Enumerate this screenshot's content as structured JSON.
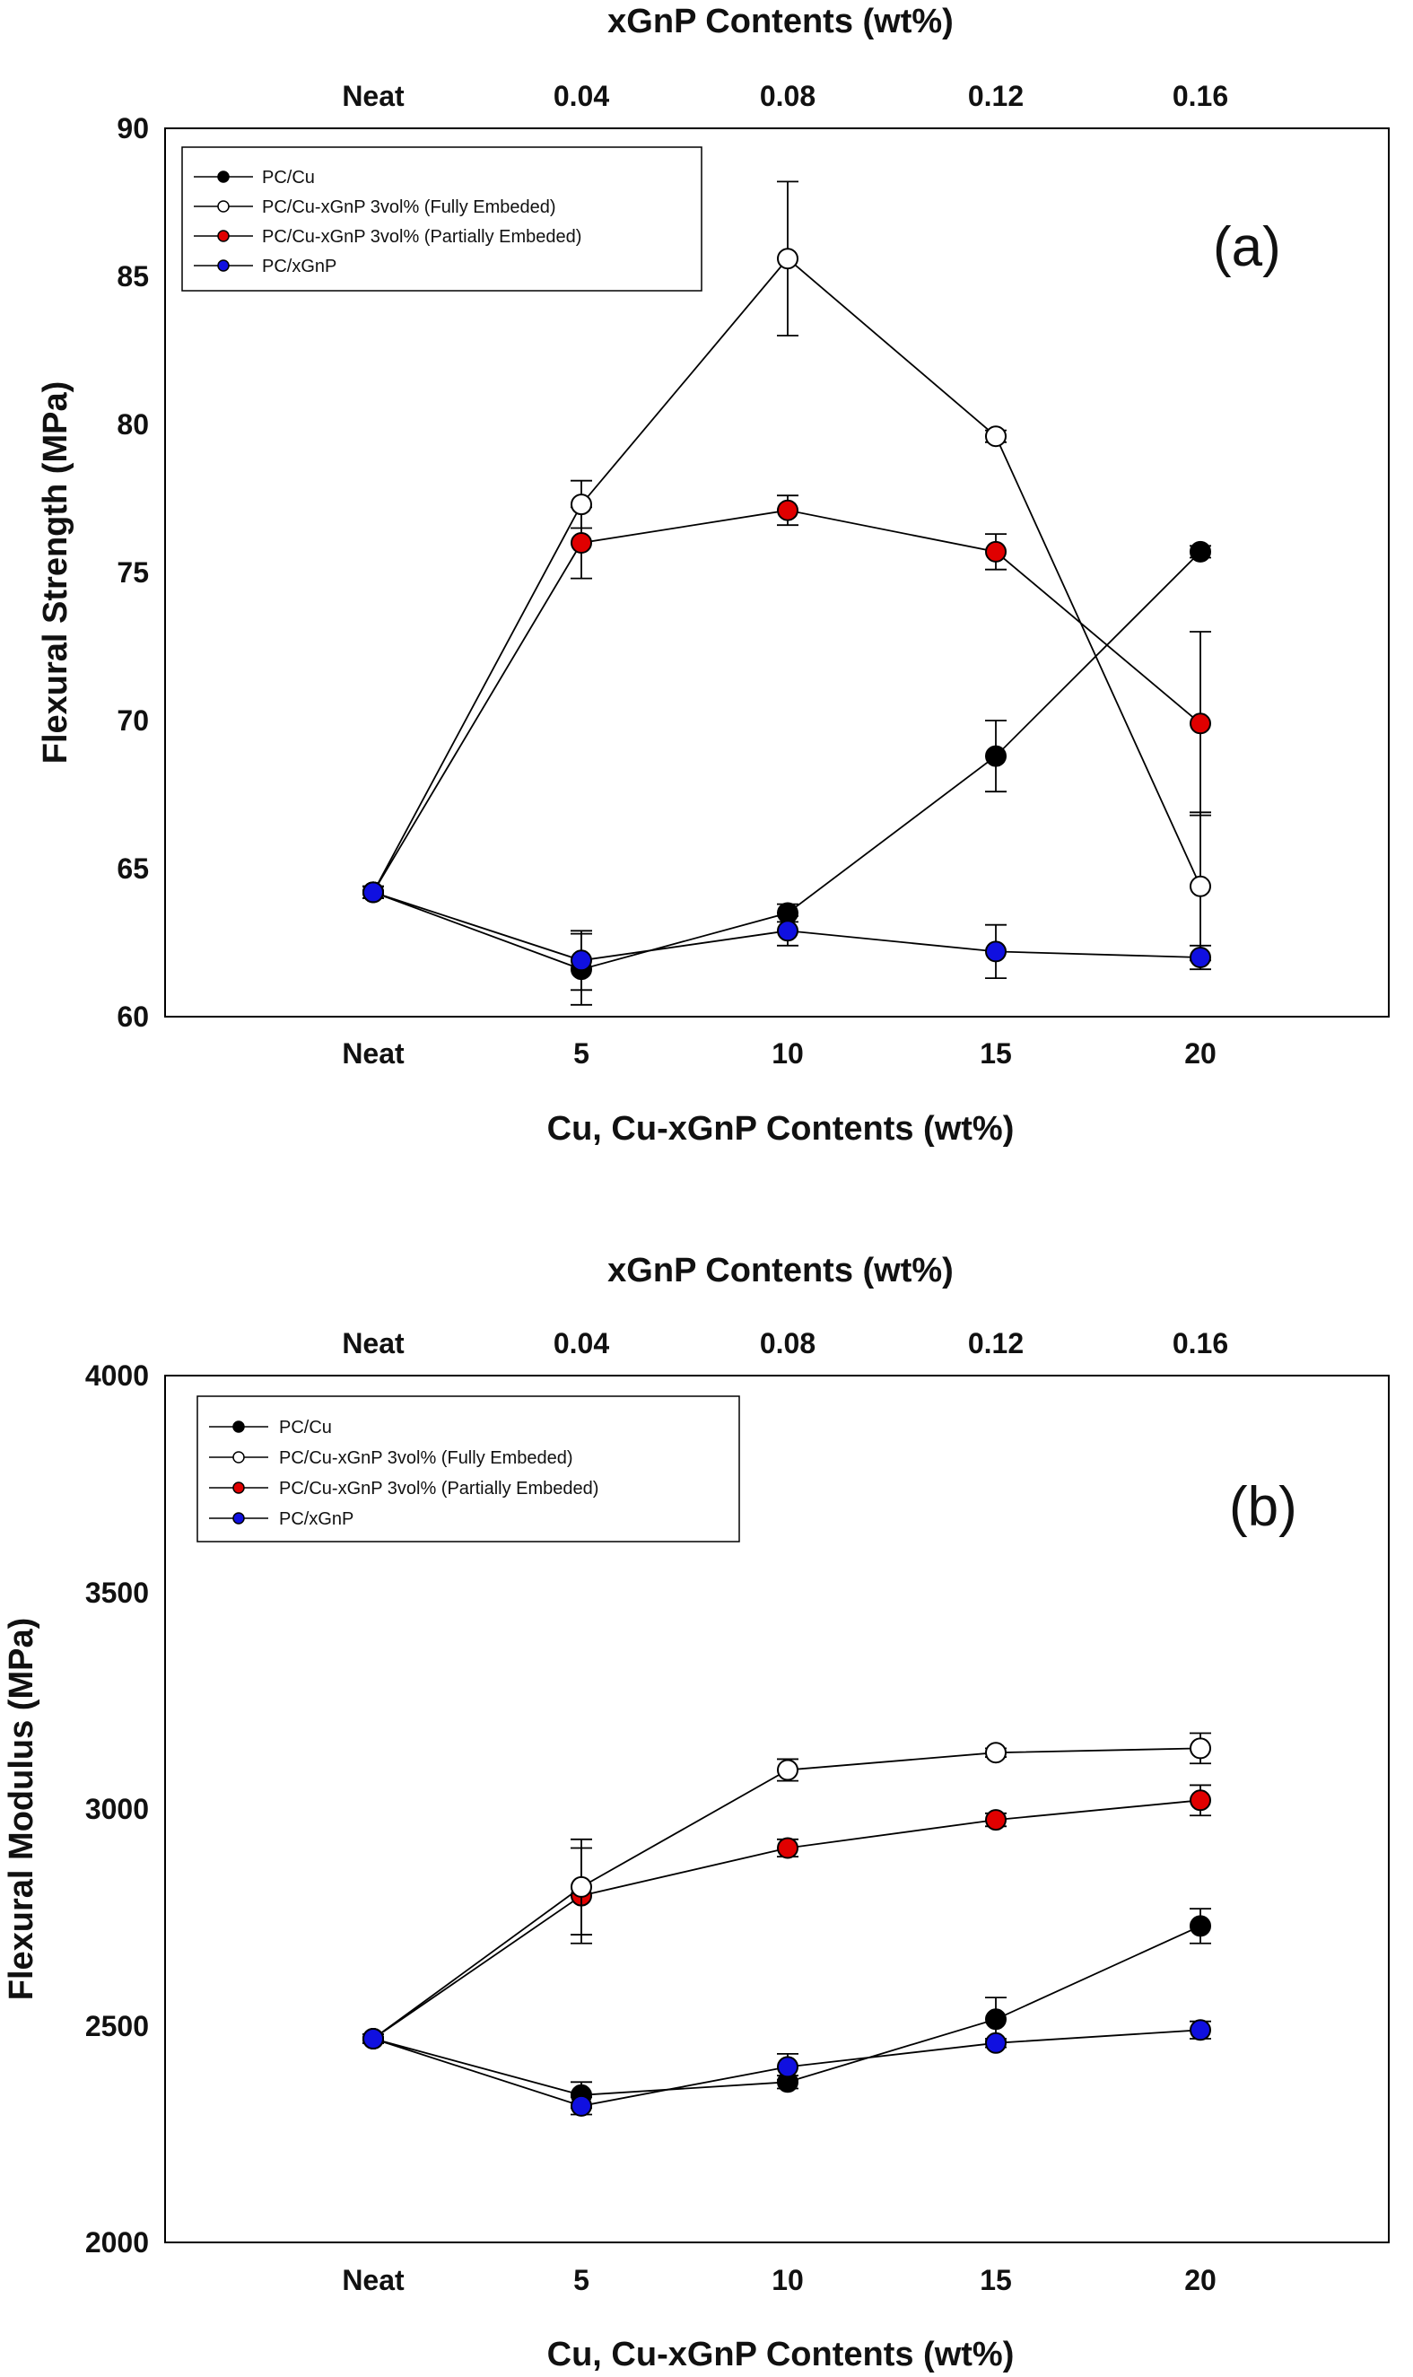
{
  "chart_data": [
    {
      "type": "line",
      "panel_label": "(a)",
      "top_axis_title": "xGnP Contents (wt%)",
      "top_categories": [
        "Neat",
        "0.04",
        "0.08",
        "0.12",
        "0.16"
      ],
      "xlabel": "Cu, Cu-xGnP Contents (wt%)",
      "ylabel": "Flexural Strength (MPa)",
      "categories": [
        "Neat",
        "5",
        "10",
        "15",
        "20"
      ],
      "ylim": [
        60,
        90
      ],
      "yticks": [
        60,
        65,
        70,
        75,
        80,
        85,
        90
      ],
      "legend_position": "top-left",
      "series": [
        {
          "name": "PC/Cu",
          "color": "#000000",
          "fill": "#000000",
          "values": [
            64.2,
            61.6,
            63.5,
            68.8,
            75.7
          ],
          "errors": [
            0.2,
            1.2,
            0.3,
            1.2,
            0.2
          ]
        },
        {
          "name": "PC/Cu-xGnP 3vol% (Fully Embeded)",
          "color": "#000000",
          "fill": "#ffffff",
          "values": [
            64.2,
            77.3,
            85.6,
            79.6,
            64.4
          ],
          "errors": [
            0.2,
            0.8,
            2.6,
            0.2,
            2.5
          ]
        },
        {
          "name": "PC/Cu-xGnP 3vol% (Partially Embeded)",
          "color": "#000000",
          "fill": "#e00000",
          "values": [
            64.2,
            76.0,
            77.1,
            75.7,
            69.9
          ],
          "errors": [
            0.2,
            1.2,
            0.5,
            0.6,
            3.1
          ]
        },
        {
          "name": "PC/xGnP",
          "color": "#000000",
          "fill": "#1010e0",
          "values": [
            64.2,
            61.9,
            62.9,
            62.2,
            62.0
          ],
          "errors": [
            0.2,
            1.0,
            0.5,
            0.9,
            0.4
          ]
        }
      ]
    },
    {
      "type": "line",
      "panel_label": "(b)",
      "top_axis_title": "xGnP Contents (wt%)",
      "top_categories": [
        "Neat",
        "0.04",
        "0.08",
        "0.12",
        "0.16"
      ],
      "xlabel": "Cu, Cu-xGnP Contents (wt%)",
      "ylabel": "Flexural Modulus (MPa)",
      "categories": [
        "Neat",
        "5",
        "10",
        "15",
        "20"
      ],
      "ylim": [
        2000,
        4000
      ],
      "yticks": [
        2000,
        2500,
        3000,
        3500,
        4000
      ],
      "legend_position": "top-left",
      "series": [
        {
          "name": "PC/Cu",
          "color": "#000000",
          "fill": "#000000",
          "values": [
            2470,
            2340,
            2370,
            2515,
            2730
          ],
          "errors": [
            10,
            30,
            15,
            50,
            40
          ]
        },
        {
          "name": "PC/Cu-xGnP 3vol% (Fully Embeded)",
          "color": "#000000",
          "fill": "#ffffff",
          "values": [
            2470,
            2820,
            3090,
            3130,
            3140
          ],
          "errors": [
            10,
            110,
            25,
            10,
            35
          ]
        },
        {
          "name": "PC/Cu-xGnP 3vol% (Partially Embeded)",
          "color": "#000000",
          "fill": "#e00000",
          "values": [
            2470,
            2800,
            2910,
            2975,
            3020
          ],
          "errors": [
            10,
            110,
            20,
            15,
            35
          ]
        },
        {
          "name": "PC/xGnP",
          "color": "#000000",
          "fill": "#1010e0",
          "values": [
            2470,
            2315,
            2405,
            2460,
            2490
          ],
          "errors": [
            10,
            20,
            30,
            10,
            20
          ]
        }
      ]
    }
  ]
}
